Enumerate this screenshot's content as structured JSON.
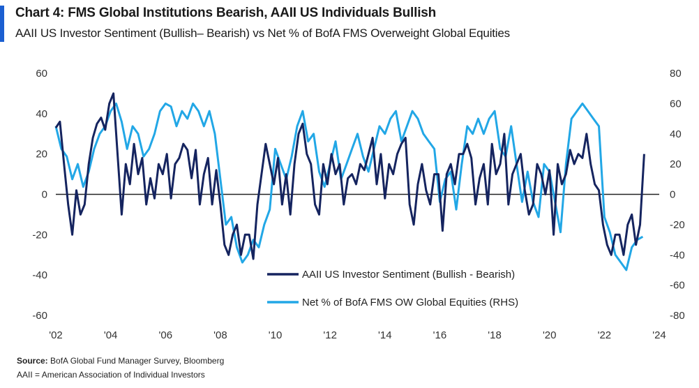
{
  "header": {
    "title": "Chart 4: FMS Global Institutions Bearish, AAII US Individuals Bullish",
    "subtitle": "AAII US Investor Sentiment (Bullish– Bearish) vs Net % of BofA FMS Overweight Global Equities"
  },
  "footer": {
    "source_label": "Source:",
    "source_text": "BofA Global Fund Manager Survey, Bloomberg",
    "note": "AAII = American Association of Individual Investors"
  },
  "colors": {
    "accent": "#1b5fd1",
    "aaii": "#15245f",
    "fms": "#22a7e6",
    "zero_line": "#222222"
  },
  "chart_data": {
    "type": "line",
    "title": "Chart 4: FMS Global Institutions Bearish, AAII US Individuals Bullish",
    "x_tick_labels": [
      "'02",
      "'04",
      "'06",
      "'08",
      "'10",
      "'12",
      "'14",
      "'16",
      "'18",
      "'20",
      "'22",
      "'24"
    ],
    "x_ticks": [
      2002,
      2004,
      2006,
      2008,
      2010,
      2012,
      2014,
      2016,
      2018,
      2020,
      2022,
      2024
    ],
    "xlim": [
      2002,
      2024
    ],
    "ylim_left": [
      -60,
      60
    ],
    "yticks_left": [
      60,
      40,
      20,
      0,
      -20,
      -40,
      -60
    ],
    "ylim_right": [
      -80,
      80
    ],
    "yticks_right": [
      80,
      60,
      40,
      20,
      0,
      -20,
      -40,
      -60,
      -80
    ],
    "grid": false,
    "legend_position": "bottom-right",
    "series": [
      {
        "name": "AAII US Investor Sentiment (Bullish - Bearish)",
        "axis": "left",
        "color_key": "aaii",
        "x": [
          2002.0,
          2002.15,
          2002.3,
          2002.45,
          2002.6,
          2002.75,
          2002.9,
          2003.05,
          2003.2,
          2003.35,
          2003.5,
          2003.65,
          2003.8,
          2003.95,
          2004.1,
          2004.25,
          2004.4,
          2004.55,
          2004.7,
          2004.85,
          2005.0,
          2005.15,
          2005.3,
          2005.45,
          2005.6,
          2005.75,
          2005.9,
          2006.05,
          2006.2,
          2006.35,
          2006.5,
          2006.65,
          2006.8,
          2006.95,
          2007.1,
          2007.25,
          2007.4,
          2007.55,
          2007.7,
          2007.85,
          2008.0,
          2008.15,
          2008.3,
          2008.45,
          2008.6,
          2008.75,
          2008.9,
          2009.05,
          2009.2,
          2009.35,
          2009.5,
          2009.65,
          2009.8,
          2009.95,
          2010.1,
          2010.25,
          2010.4,
          2010.55,
          2010.7,
          2010.85,
          2011.0,
          2011.15,
          2011.3,
          2011.45,
          2011.6,
          2011.75,
          2011.9,
          2012.05,
          2012.2,
          2012.35,
          2012.5,
          2012.65,
          2012.8,
          2012.95,
          2013.1,
          2013.25,
          2013.4,
          2013.55,
          2013.7,
          2013.85,
          2014.0,
          2014.15,
          2014.3,
          2014.45,
          2014.6,
          2014.75,
          2014.9,
          2015.05,
          2015.2,
          2015.35,
          2015.5,
          2015.65,
          2015.8,
          2015.95,
          2016.1,
          2016.25,
          2016.4,
          2016.55,
          2016.7,
          2016.85,
          2017.0,
          2017.15,
          2017.3,
          2017.45,
          2017.6,
          2017.75,
          2017.9,
          2018.05,
          2018.2,
          2018.35,
          2018.5,
          2018.65,
          2018.8,
          2018.95,
          2019.1,
          2019.25,
          2019.4,
          2019.55,
          2019.7,
          2019.85,
          2020.0,
          2020.15,
          2020.3,
          2020.45,
          2020.6,
          2020.75,
          2020.9,
          2021.05,
          2021.2,
          2021.35,
          2021.5,
          2021.65,
          2021.8,
          2021.95,
          2022.1,
          2022.25,
          2022.4,
          2022.55,
          2022.7,
          2022.85,
          2023.0,
          2023.15,
          2023.3,
          2023.45
        ],
        "y": [
          33,
          36,
          15,
          -5,
          -20,
          2,
          -10,
          -5,
          15,
          28,
          35,
          38,
          32,
          45,
          50,
          20,
          -10,
          15,
          5,
          25,
          10,
          18,
          -5,
          8,
          -2,
          15,
          10,
          20,
          -2,
          15,
          18,
          25,
          22,
          8,
          22,
          -5,
          10,
          18,
          -5,
          12,
          -5,
          -25,
          -30,
          -20,
          -15,
          -30,
          -20,
          -20,
          -32,
          -5,
          10,
          25,
          15,
          5,
          18,
          -5,
          10,
          -10,
          15,
          30,
          35,
          20,
          15,
          -5,
          -10,
          15,
          5,
          20,
          10,
          15,
          -5,
          8,
          10,
          5,
          15,
          12,
          20,
          28,
          5,
          20,
          -2,
          15,
          10,
          20,
          25,
          28,
          -5,
          -15,
          5,
          15,
          2,
          -5,
          10,
          10,
          -18,
          10,
          15,
          5,
          20,
          20,
          25,
          18,
          -5,
          8,
          15,
          -5,
          25,
          10,
          15,
          30,
          -5,
          10,
          15,
          20,
          2,
          -10,
          -5,
          15,
          10,
          0,
          12,
          -20,
          15,
          5,
          10,
          22,
          15,
          20,
          18,
          30,
          15,
          5,
          2,
          -15,
          -25,
          -30,
          -20,
          -20,
          -30,
          -15,
          -10,
          -25,
          -15,
          20
        ]
      },
      {
        "name": "Net % of BofA FMS OW Global Equities (RHS)",
        "axis": "right",
        "color_key": "fms",
        "x": [
          2002.0,
          2002.2,
          2002.4,
          2002.6,
          2002.8,
          2003.0,
          2003.2,
          2003.4,
          2003.6,
          2003.8,
          2004.0,
          2004.2,
          2004.4,
          2004.6,
          2004.8,
          2005.0,
          2005.2,
          2005.4,
          2005.6,
          2005.8,
          2006.0,
          2006.2,
          2006.4,
          2006.6,
          2006.8,
          2007.0,
          2007.2,
          2007.4,
          2007.6,
          2007.8,
          2008.0,
          2008.2,
          2008.4,
          2008.6,
          2008.8,
          2009.0,
          2009.2,
          2009.4,
          2009.6,
          2009.8,
          2010.0,
          2010.2,
          2010.4,
          2010.6,
          2010.8,
          2011.0,
          2011.2,
          2011.4,
          2011.6,
          2011.8,
          2012.0,
          2012.2,
          2012.4,
          2012.6,
          2012.8,
          2013.0,
          2013.2,
          2013.4,
          2013.6,
          2013.8,
          2014.0,
          2014.2,
          2014.4,
          2014.6,
          2014.8,
          2015.0,
          2015.2,
          2015.4,
          2015.6,
          2015.8,
          2016.0,
          2016.2,
          2016.4,
          2016.6,
          2016.8,
          2017.0,
          2017.2,
          2017.4,
          2017.6,
          2017.8,
          2018.0,
          2018.2,
          2018.4,
          2018.6,
          2018.8,
          2019.0,
          2019.2,
          2019.4,
          2019.6,
          2019.8,
          2020.0,
          2020.2,
          2020.4,
          2020.6,
          2020.8,
          2021.0,
          2021.2,
          2021.4,
          2021.6,
          2021.8,
          2022.0,
          2022.2,
          2022.4,
          2022.6,
          2022.8,
          2023.0,
          2023.2,
          2023.4
        ],
        "y": [
          45,
          30,
          25,
          10,
          20,
          5,
          15,
          30,
          40,
          45,
          55,
          60,
          48,
          30,
          45,
          40,
          25,
          30,
          40,
          55,
          60,
          58,
          45,
          55,
          50,
          60,
          55,
          45,
          55,
          40,
          10,
          -20,
          -15,
          -35,
          -45,
          -40,
          -30,
          -35,
          -20,
          -10,
          30,
          20,
          10,
          25,
          45,
          55,
          35,
          40,
          15,
          5,
          20,
          35,
          10,
          20,
          30,
          40,
          25,
          15,
          30,
          45,
          40,
          50,
          55,
          35,
          45,
          55,
          50,
          40,
          35,
          30,
          -5,
          10,
          15,
          -10,
          20,
          45,
          40,
          50,
          40,
          50,
          55,
          30,
          25,
          45,
          20,
          -5,
          15,
          -5,
          -15,
          20,
          15,
          -5,
          -25,
          20,
          50,
          55,
          60,
          55,
          50,
          45,
          -15,
          -25,
          -40,
          -45,
          -50,
          -35,
          -30,
          -28
        ]
      }
    ]
  }
}
